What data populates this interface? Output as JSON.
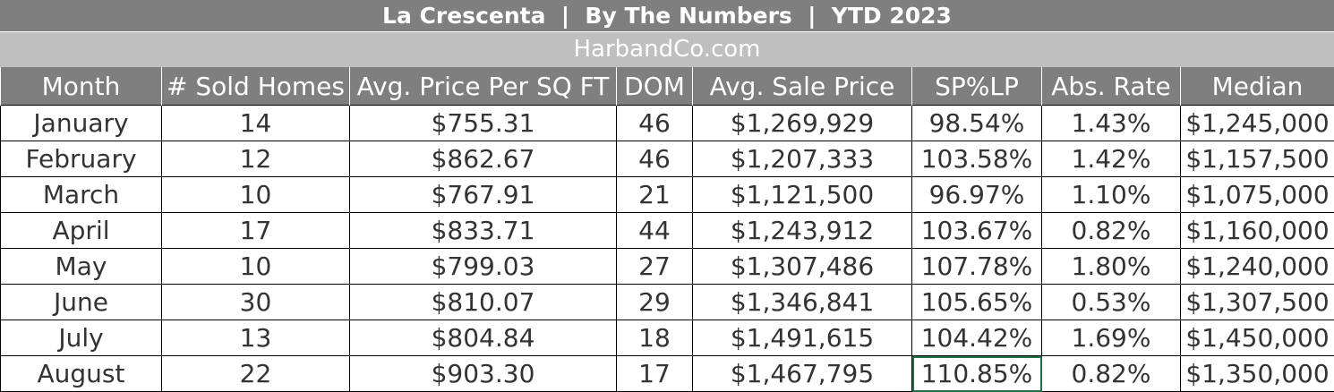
{
  "title": "La Crescenta  |  By The Numbers  |  YTD 2023",
  "subtitle": "HarbandCo.com",
  "columns": [
    "Month",
    "# Sold Homes",
    "Avg. Price Per SQ FT",
    "DOM",
    "Avg. Sale Price",
    "SP%LP",
    "Abs. Rate",
    "Median"
  ],
  "rows": [
    [
      "January",
      "14",
      "$755.31",
      "46",
      "$1,269,929",
      "98.54%",
      "1.43%",
      "$1,245,000"
    ],
    [
      "February",
      "12",
      "$862.67",
      "46",
      "$1,207,333",
      "103.58%",
      "1.42%",
      "$1,157,500"
    ],
    [
      "March",
      "10",
      "$767.91",
      "21",
      "$1,121,500",
      "96.97%",
      "1.10%",
      "$1,075,000"
    ],
    [
      "April",
      "17",
      "$833.71",
      "44",
      "$1,243,912",
      "103.67%",
      "0.82%",
      "$1,160,000"
    ],
    [
      "May",
      "10",
      "$799.03",
      "27",
      "$1,307,486",
      "107.78%",
      "1.80%",
      "$1,240,000"
    ],
    [
      "June",
      "30",
      "$810.07",
      "29",
      "$1,346,841",
      "105.65%",
      "0.53%",
      "$1,307,500"
    ],
    [
      "July",
      "13",
      "$804.84",
      "18",
      "$1,491,615",
      "104.42%",
      "1.69%",
      "$1,450,000"
    ],
    [
      "August",
      "22",
      "$903.30",
      "17",
      "$1,467,795",
      "110.85%",
      "0.82%",
      "$1,350,000"
    ]
  ],
  "colors": {
    "header_bg": "#7f7f7f",
    "subtitle_bg": "#bfbfbf",
    "header_text": "#ffffff",
    "cell_text": "#333333",
    "selection": "#1e7145"
  }
}
